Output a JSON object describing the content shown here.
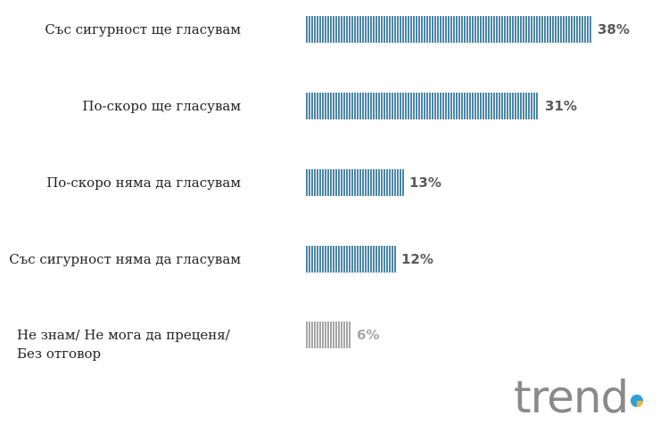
{
  "chart_data": {
    "type": "bar",
    "orientation": "horizontal",
    "categories": [
      "Със сигурност ще гласувам",
      "По-скоро ще гласувам",
      "По-скоро няма да гласувам",
      "Със сигурност няма да гласувам",
      "Не знам/ Не мога да преценя/ Без отговор"
    ],
    "category_lines": [
      [
        "Със сигурност ще гласувам"
      ],
      [
        "По-скоро ще гласувам"
      ],
      [
        "По-скоро няма да гласувам"
      ],
      [
        "Със сигурност няма да гласувам"
      ],
      [
        "Не знам/ Не мога да преценя/",
        "Без отговор"
      ]
    ],
    "values": [
      38,
      31,
      13,
      12,
      6
    ],
    "value_labels": [
      "38%",
      "31%",
      "13%",
      "12%",
      "6%"
    ],
    "unit": "%",
    "xlim": [
      0,
      38
    ],
    "grid": false,
    "legend": false,
    "bar_colors": [
      "#4a86a8",
      "#4a86a8",
      "#4a86a8",
      "#4a86a8",
      "#a6a6a6"
    ],
    "label_colors": [
      "#595959",
      "#595959",
      "#595959",
      "#595959",
      "#a6a6a6"
    ]
  },
  "logo": {
    "text": "trend",
    "text_color": "#8a8a8a",
    "dot_colors": [
      "#2f9fd8",
      "#f2b233"
    ]
  }
}
